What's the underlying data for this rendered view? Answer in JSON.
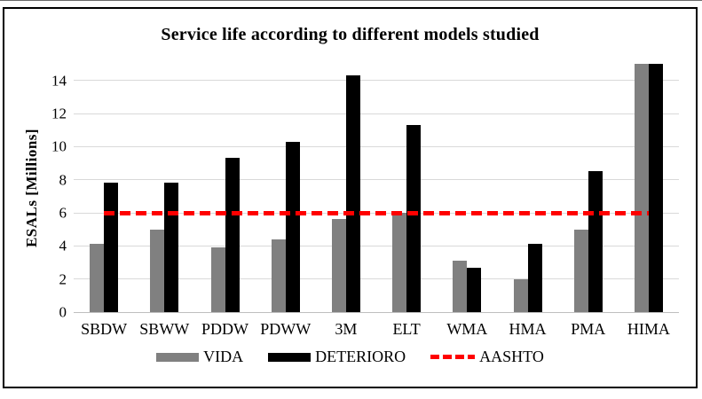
{
  "chart_data": {
    "type": "bar",
    "title": "Service life according to different models studied",
    "ylabel": "ESALs [Millions]",
    "xlabel": "",
    "categories": [
      "SBDW",
      "SBWW",
      "PDDW",
      "PDWW",
      "3M",
      "ELT",
      "WMA",
      "HMA",
      "PMA",
      "HIMA"
    ],
    "series": [
      {
        "name": "VIDA",
        "color": "#808080",
        "values": [
          4.1,
          5.0,
          3.9,
          4.4,
          5.6,
          6.0,
          3.1,
          2.0,
          5.0,
          15.0
        ]
      },
      {
        "name": "DETERIORO",
        "color": "#000000",
        "values": [
          7.8,
          7.8,
          9.3,
          10.3,
          14.3,
          11.3,
          2.7,
          4.1,
          8.5,
          15.0
        ]
      }
    ],
    "reference_line": {
      "name": "AASHTO",
      "value": 6,
      "color": "#ff0000",
      "style": "dashed"
    },
    "ylim": [
      0,
      15
    ],
    "yticks": [
      0,
      2,
      4,
      6,
      8,
      10,
      12,
      14
    ],
    "grid": true,
    "legend_position": "bottom",
    "colors": {
      "gridline": "#d9d9d9",
      "axis_line": "#bfbfbf",
      "text": "#000000"
    }
  }
}
